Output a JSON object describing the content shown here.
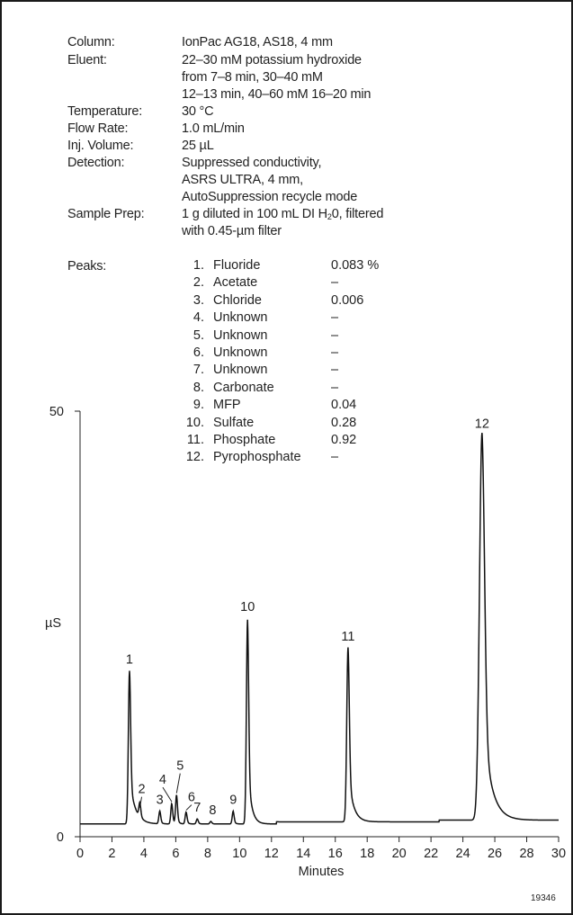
{
  "conditions": {
    "column": {
      "label": "Column:",
      "value": "IonPac AG18, AS18, 4 mm"
    },
    "eluent": {
      "label": "Eluent:",
      "lines": [
        "22–30 mM potassium hydroxide",
        "from 7–8 min, 30–40 mM",
        "12–13 min, 40–60 mM 16–20 min"
      ]
    },
    "temperature": {
      "label": "Temperature:",
      "value": "30 °C"
    },
    "flow_rate": {
      "label": "Flow Rate:",
      "value": "1.0 mL/min"
    },
    "inj_volume": {
      "label": "Inj. Volume:",
      "value": "25 µL"
    },
    "detection": {
      "label": "Detection:",
      "lines": [
        "Suppressed conductivity,",
        "ASRS ULTRA, 4 mm,",
        "AutoSuppression recycle mode"
      ]
    },
    "sample_prep": {
      "label": "Sample Prep:",
      "line1_pre": "1 g diluted in 100 mL DI H",
      "line1_sub": "2",
      "line1_post": "0, filtered",
      "line2": "with 0.45-µm filter"
    }
  },
  "peaks": {
    "label": "Peaks:",
    "items": [
      {
        "num": "1.",
        "name": "Fluoride",
        "amount": "0.083 %"
      },
      {
        "num": "2.",
        "name": "Acetate",
        "amount": "–"
      },
      {
        "num": "3.",
        "name": "Chloride",
        "amount": "0.006"
      },
      {
        "num": "4.",
        "name": "Unknown",
        "amount": "–"
      },
      {
        "num": "5.",
        "name": "Unknown",
        "amount": "–"
      },
      {
        "num": "6.",
        "name": "Unknown",
        "amount": "–"
      },
      {
        "num": "7.",
        "name": "Unknown",
        "amount": "–"
      },
      {
        "num": "8.",
        "name": "Carbonate",
        "amount": "–"
      },
      {
        "num": "9.",
        "name": "MFP",
        "amount": "0.04"
      },
      {
        "num": "10.",
        "name": "Sulfate",
        "amount": "0.28"
      },
      {
        "num": "11.",
        "name": "Phosphate",
        "amount": "0.92"
      },
      {
        "num": "12.",
        "name": "Pyrophosphate",
        "amount": "–"
      }
    ]
  },
  "chart_data": {
    "type": "line",
    "xlabel": "Minutes",
    "ylabel": "µS",
    "xlim": [
      0,
      30
    ],
    "ylim": [
      0,
      50
    ],
    "xticks": [
      "0",
      "2",
      "4",
      "6",
      "8",
      "10",
      "12",
      "14",
      "16",
      "18",
      "20",
      "22",
      "24",
      "26",
      "28",
      "30"
    ],
    "yticks": [
      "0",
      "50"
    ],
    "grid": false,
    "baseline": 1.5,
    "peaks": [
      {
        "label": "1",
        "rt": 3.1,
        "height": 19.5
      },
      {
        "label": "2",
        "rt": 3.75,
        "height": 3.2
      },
      {
        "label": "3",
        "rt": 5.0,
        "height": 3.0
      },
      {
        "label": "4",
        "rt": 5.75,
        "height": 3.9
      },
      {
        "label": "5",
        "rt": 6.05,
        "height": 4.9
      },
      {
        "label": "6",
        "rt": 6.65,
        "height": 2.9
      },
      {
        "label": "7",
        "rt": 7.35,
        "height": 2.1
      },
      {
        "label": "8",
        "rt": 8.2,
        "height": 1.8
      },
      {
        "label": "9",
        "rt": 9.6,
        "height": 3.0
      },
      {
        "label": "10",
        "rt": 10.5,
        "height": 25.5
      },
      {
        "label": "11",
        "rt": 16.8,
        "height": 22.0
      },
      {
        "label": "12",
        "rt": 25.2,
        "height": 47.0
      }
    ]
  },
  "figure_id": "19346"
}
